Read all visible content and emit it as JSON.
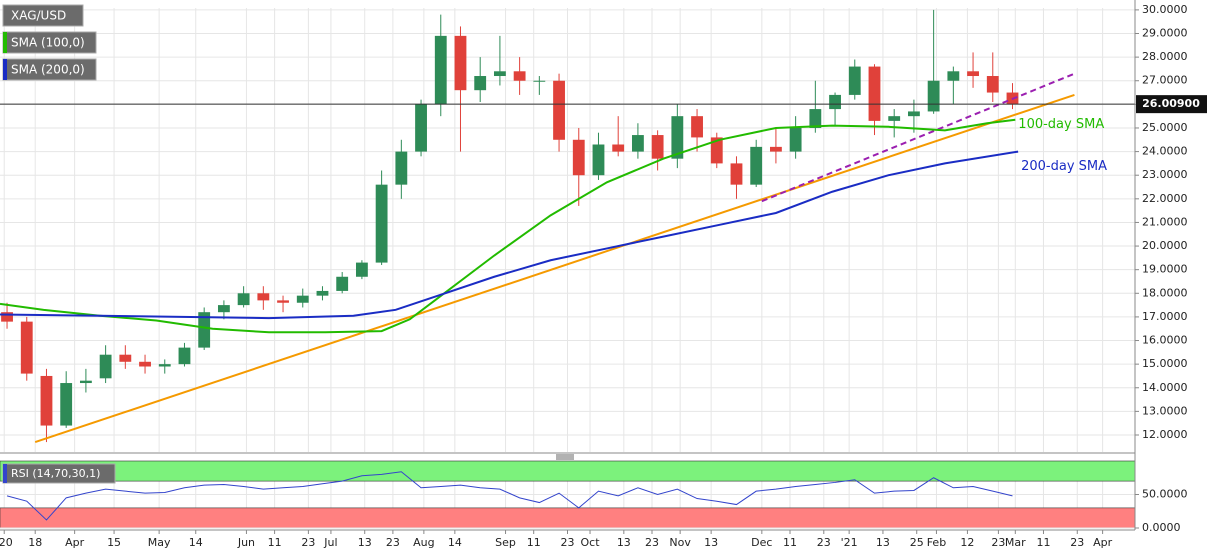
{
  "chart_data": [
    {
      "type": "candlestick",
      "name": "XAG/USD",
      "up_color": "#2e8b57",
      "down_color": "#e0413a",
      "x": [
        7,
        14,
        21,
        28,
        35,
        42,
        49,
        56,
        63,
        70,
        77,
        84,
        91,
        98,
        105,
        112,
        119,
        126,
        133,
        140,
        147,
        154,
        161,
        168,
        175,
        182,
        189,
        196,
        203,
        210,
        217,
        224,
        231,
        238,
        245,
        252,
        259,
        266,
        273,
        280,
        287,
        294,
        301,
        308,
        315,
        322,
        329,
        336,
        343,
        350,
        357,
        364
      ],
      "open": [
        17.2,
        16.8,
        14.5,
        12.4,
        14.2,
        14.4,
        15.4,
        15.1,
        14.9,
        15.0,
        15.7,
        17.2,
        17.5,
        18.0,
        17.7,
        17.6,
        17.9,
        18.1,
        18.7,
        19.3,
        22.6,
        24.0,
        26.0,
        28.9,
        26.6,
        27.2,
        27.4,
        27.0,
        27.0,
        24.5,
        23.0,
        24.3,
        24.0,
        24.7,
        23.7,
        25.5,
        24.6,
        23.5,
        22.6,
        24.2,
        24.0,
        25.0,
        25.8,
        26.4,
        27.6,
        25.3,
        25.5,
        25.7,
        27.0,
        27.4,
        27.2,
        26.5
      ],
      "high": [
        17.6,
        17.0,
        14.8,
        14.7,
        14.8,
        15.8,
        15.8,
        15.4,
        15.2,
        15.9,
        17.4,
        17.7,
        18.3,
        18.3,
        17.9,
        18.2,
        18.3,
        18.9,
        19.4,
        23.2,
        24.5,
        26.2,
        29.8,
        29.3,
        28.0,
        28.9,
        28.0,
        27.2,
        27.3,
        25.0,
        24.8,
        25.5,
        25.2,
        24.9,
        26.0,
        25.8,
        24.8,
        23.8,
        24.5,
        25.0,
        25.5,
        27.0,
        26.5,
        27.9,
        27.7,
        25.8,
        26.2,
        30.0,
        27.6,
        28.2,
        28.2,
        26.9
      ],
      "low": [
        16.5,
        14.3,
        11.7,
        12.3,
        13.8,
        14.2,
        14.8,
        14.6,
        14.6,
        14.9,
        15.6,
        16.9,
        17.4,
        17.3,
        17.2,
        17.4,
        17.7,
        18.0,
        18.6,
        19.2,
        22.0,
        23.8,
        25.5,
        24.0,
        26.1,
        26.8,
        26.4,
        26.4,
        24.0,
        21.7,
        22.8,
        23.8,
        23.7,
        23.2,
        23.3,
        24.0,
        23.3,
        22.0,
        22.5,
        23.5,
        23.7,
        24.8,
        25.1,
        26.2,
        24.7,
        24.6,
        24.8,
        25.6,
        26.0,
        26.7,
        26.1,
        25.8
      ],
      "close": [
        16.8,
        14.6,
        12.4,
        14.2,
        14.3,
        15.4,
        15.1,
        14.9,
        15.0,
        15.7,
        17.2,
        17.5,
        18.0,
        17.7,
        17.6,
        17.9,
        18.1,
        18.7,
        19.3,
        22.6,
        24.0,
        26.0,
        28.9,
        26.6,
        27.2,
        27.4,
        27.0,
        27.0,
        24.5,
        23.0,
        24.3,
        24.0,
        24.7,
        23.7,
        25.5,
        24.6,
        23.5,
        22.6,
        24.2,
        24.0,
        25.0,
        25.8,
        26.4,
        27.6,
        25.3,
        25.5,
        25.7,
        27.0,
        27.4,
        27.2,
        26.5,
        26.0
      ],
      "series": [
        {
          "name": "SMA (100,0)",
          "label": "100-day SMA",
          "color": "#22bb00",
          "x": [
            4.5,
            20,
            40,
            60,
            80,
            100,
            120,
            140,
            150,
            160,
            180,
            200,
            220,
            240,
            260,
            280,
            300,
            320,
            340,
            355,
            365
          ],
          "values": [
            17.55,
            17.3,
            17.05,
            16.85,
            16.5,
            16.35,
            16.35,
            16.4,
            16.9,
            17.8,
            19.6,
            21.3,
            22.7,
            23.7,
            24.5,
            25.0,
            25.1,
            25.05,
            24.9,
            25.2,
            25.35
          ]
        },
        {
          "name": "SMA (200,0)",
          "label": "200-day SMA",
          "color": "#1a2cc4",
          "x": [
            4.5,
            40,
            100,
            130,
            145,
            160,
            180,
            200,
            220,
            240,
            260,
            280,
            300,
            320,
            340,
            366
          ],
          "values": [
            17.1,
            17.05,
            16.95,
            17.05,
            17.3,
            17.9,
            18.7,
            19.4,
            19.9,
            20.4,
            20.9,
            21.4,
            22.3,
            23.0,
            23.5,
            24.0
          ]
        }
      ],
      "trendlines": [
        {
          "color": "#f59a00",
          "dashed": false,
          "x": [
            17,
            386
          ],
          "values": [
            11.7,
            26.4
          ]
        },
        {
          "color": "#9b1fb0",
          "dashed": true,
          "x": [
            275,
            386
          ],
          "values": [
            21.9,
            27.3
          ]
        }
      ],
      "price_line": {
        "value": 26.009,
        "label": "26.00900"
      },
      "xlim": [
        4.5,
        407.5
      ],
      "ylim": [
        11.28,
        30.08
      ],
      "yticks": [
        {
          "value": 12,
          "label": "12.0000"
        },
        {
          "value": 13,
          "label": "13.0000"
        },
        {
          "value": 14,
          "label": "14.0000"
        },
        {
          "value": 15,
          "label": "15.0000"
        },
        {
          "value": 16,
          "label": "16.0000"
        },
        {
          "value": 17,
          "label": "17.0000"
        },
        {
          "value": 18,
          "label": "18.0000"
        },
        {
          "value": 19,
          "label": "19.0000"
        },
        {
          "value": 20,
          "label": "20.0000"
        },
        {
          "value": 21,
          "label": "21.0000"
        },
        {
          "value": 22,
          "label": "22.0000"
        },
        {
          "value": 23,
          "label": "23.0000"
        },
        {
          "value": 24,
          "label": "24.0000"
        },
        {
          "value": 25,
          "label": "25.0000"
        },
        {
          "value": 26,
          "label": "26.0000"
        },
        {
          "value": 27,
          "label": "27.0000"
        },
        {
          "value": 28,
          "label": "28.0000"
        },
        {
          "value": 29,
          "label": "29.0000"
        },
        {
          "value": 30,
          "label": "30.0000"
        }
      ],
      "xticks": [
        {
          "value": 6,
          "label": "'20"
        },
        {
          "value": 17,
          "label": "18"
        },
        {
          "value": 31,
          "label": "Apr"
        },
        {
          "value": 45,
          "label": "15"
        },
        {
          "value": 61,
          "label": "May"
        },
        {
          "value": 74,
          "label": "14"
        },
        {
          "value": 92,
          "label": "Jun"
        },
        {
          "value": 102,
          "label": "11"
        },
        {
          "value": 114,
          "label": "23"
        },
        {
          "value": 122,
          "label": "Jul"
        },
        {
          "value": 134,
          "label": "13"
        },
        {
          "value": 144,
          "label": "23"
        },
        {
          "value": 155,
          "label": "Aug"
        },
        {
          "value": 166,
          "label": "14"
        },
        {
          "value": 184,
          "label": "Sep"
        },
        {
          "value": 194,
          "label": "11"
        },
        {
          "value": 206,
          "label": "23"
        },
        {
          "value": 214,
          "label": "Oct"
        },
        {
          "value": 226,
          "label": "13"
        },
        {
          "value": 236,
          "label": "23"
        },
        {
          "value": 246,
          "label": "Nov"
        },
        {
          "value": 257,
          "label": "13"
        },
        {
          "value": 275,
          "label": "Dec"
        },
        {
          "value": 285,
          "label": "11"
        },
        {
          "value": 297,
          "label": "23"
        },
        {
          "value": 306,
          "label": "'21"
        },
        {
          "value": 318,
          "label": "13"
        },
        {
          "value": 330,
          "label": "25"
        },
        {
          "value": 337,
          "label": "Feb"
        },
        {
          "value": 348,
          "label": "12"
        },
        {
          "value": 359,
          "label": "23"
        },
        {
          "value": 365,
          "label": "Mar"
        },
        {
          "value": 375,
          "label": "11"
        },
        {
          "value": 387,
          "label": "23"
        },
        {
          "value": 396,
          "label": "Apr"
        }
      ],
      "grid": true
    },
    {
      "type": "line",
      "title": "RSI (14,70,30,1)",
      "color": "#3344cc",
      "x": [
        7,
        14,
        21,
        28,
        35,
        42,
        49,
        56,
        63,
        70,
        77,
        84,
        91,
        98,
        105,
        112,
        119,
        126,
        133,
        140,
        147,
        154,
        161,
        168,
        175,
        182,
        189,
        196,
        203,
        210,
        217,
        224,
        231,
        238,
        245,
        252,
        259,
        266,
        273,
        280,
        287,
        294,
        301,
        308,
        315,
        322,
        329,
        336,
        343,
        350,
        357,
        364
      ],
      "values": [
        48,
        40,
        12,
        45,
        52,
        58,
        55,
        52,
        53,
        60,
        64,
        65,
        62,
        58,
        60,
        62,
        66,
        70,
        78,
        80,
        84,
        60,
        62,
        64,
        60,
        58,
        45,
        38,
        52,
        30,
        55,
        48,
        60,
        50,
        58,
        44,
        40,
        35,
        55,
        58,
        62,
        65,
        68,
        72,
        52,
        55,
        56,
        75,
        60,
        62,
        55,
        48
      ],
      "bands": [
        {
          "from": 70,
          "to": 100,
          "color": "#7cf27c"
        },
        {
          "from": 0,
          "to": 30,
          "color": "#ff8080"
        }
      ],
      "xlim": [
        4.5,
        407.5
      ],
      "ylim": [
        0,
        100
      ],
      "yticks": [
        {
          "value": 50,
          "label": "50.0000"
        },
        {
          "value": 0,
          "label": "0.0000"
        }
      ],
      "grid": true
    }
  ]
}
